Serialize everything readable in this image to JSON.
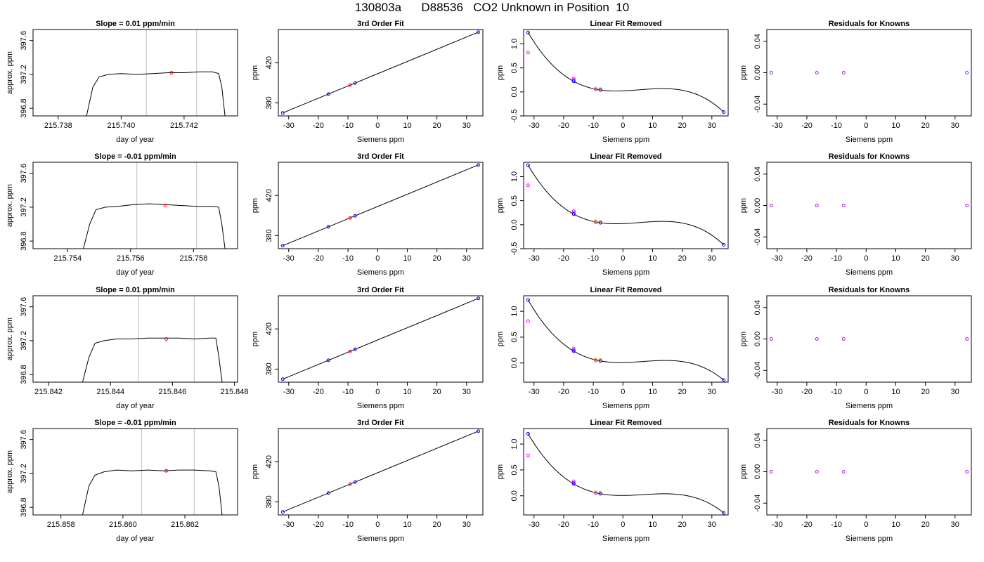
{
  "figure_title": "130803a      D88536   CO2 Unknown in Position  10",
  "colors": {
    "line": "#000000",
    "frame": "#000000",
    "vline": "#bebebe",
    "blue": "#0000ff",
    "red": "#ff0000",
    "orange": "#ffa500",
    "magenta": "#ff00ff",
    "purple": "#a020f0"
  },
  "chart_data": [
    {
      "type": "line",
      "row": 1,
      "col": 1,
      "title": "Slope =  0.01  ppm/min",
      "xlabel": "day of year",
      "ylabel": "approx. ppm",
      "xlim": [
        215.7372,
        215.7437
      ],
      "ylim": [
        396.71,
        397.73
      ],
      "xticks": [
        215.738,
        215.74,
        215.742
      ],
      "xtick_labels": [
        "215.738",
        "215.740",
        "215.742"
      ],
      "yticks": [
        396.8,
        397.2,
        397.6
      ],
      "ytick_labels": [
        "396.8",
        "397.2",
        "397.6"
      ],
      "vlines": [
        215.7408,
        215.7424
      ],
      "x": [
        215.7389,
        215.7391,
        215.7393,
        215.7396,
        215.74,
        215.7405,
        215.741,
        215.7415,
        215.742,
        215.7425,
        215.7429,
        215.7431,
        215.7432,
        215.7433
      ],
      "y": [
        396.71,
        397.05,
        397.17,
        397.2,
        397.21,
        397.2,
        397.21,
        397.22,
        397.22,
        397.23,
        397.23,
        397.21,
        397.05,
        396.71
      ],
      "marker": {
        "x": 215.7416,
        "y": 397.22
      }
    },
    {
      "type": "scatter",
      "row": 1,
      "col": 2,
      "title": "3rd Order Fit",
      "xlabel": "Siemens ppm",
      "ylabel": "ppm",
      "xlim": [
        -33.5,
        35.5
      ],
      "ylim": [
        367,
        453
      ],
      "xticks": [
        -30,
        -20,
        -10,
        0,
        10,
        20,
        30
      ],
      "xtick_labels": [
        "-30",
        "-20",
        "-10",
        "0",
        "10",
        "20",
        "30"
      ],
      "yticks": [
        380,
        420
      ],
      "ytick_labels": [
        "380",
        "420"
      ],
      "fit_line": {
        "x1": -32,
        "y1": 370.0,
        "x2": 34,
        "y2": 450.4
      },
      "points_blue": [
        [
          -32,
          370.0
        ],
        [
          -16.6,
          388.8
        ],
        [
          -7.6,
          399.7
        ],
        [
          34,
          450.4
        ]
      ],
      "points_red": [
        [
          -9.3,
          397.6
        ]
      ]
    },
    {
      "type": "scatter",
      "row": 1,
      "col": 3,
      "title": "Linear Fit Removed",
      "xlabel": "Siemens ppm",
      "ylabel": "ppm",
      "xlim": [
        -33.5,
        35.5
      ],
      "ylim": [
        -0.5,
        1.3
      ],
      "xticks": [
        -30,
        -20,
        -10,
        0,
        10,
        20,
        30
      ],
      "xtick_labels": [
        "-30",
        "-20",
        "-10",
        "0",
        "10",
        "20",
        "30"
      ],
      "yticks": [
        -0.5,
        0.0,
        0.5,
        1.0
      ],
      "ytick_labels": [
        "-0.5",
        "0.0",
        "0.5",
        "1.0"
      ],
      "curve": {
        "a": 0.00058,
        "b": -6e-06,
        "c": -0.0016,
        "d": 0.017,
        "x0": -32,
        "x1": 34
      },
      "points_blue": [
        [
          -32,
          1.24
        ],
        [
          -16.6,
          0.22
        ],
        [
          -7.6,
          0.04
        ],
        [
          34,
          -0.42
        ]
      ],
      "points_magenta": [
        [
          -32,
          0.82
        ],
        [
          -16.6,
          0.28
        ]
      ],
      "points_orange": [
        [
          -9.3,
          0.07
        ],
        [
          -7.6,
          0.06
        ]
      ],
      "points_purple": [
        [
          -9.1,
          0.05
        ],
        [
          -16.6,
          0.25
        ]
      ]
    },
    {
      "type": "scatter",
      "row": 1,
      "col": 4,
      "title": "Residuals for Knowns",
      "xlabel": "Siemens ppm",
      "ylabel": "ppm",
      "xlim": [
        -33.5,
        35.5
      ],
      "ylim": [
        -0.055,
        0.055
      ],
      "xticks": [
        -30,
        -20,
        -10,
        0,
        10,
        20,
        30
      ],
      "xtick_labels": [
        "-30",
        "-20",
        "-10",
        "0",
        "10",
        "20",
        "30"
      ],
      "yticks": [
        -0.04,
        0.0,
        0.04
      ],
      "ytick_labels": [
        "-0.04",
        "0.00",
        "0.04"
      ],
      "points_purple": [
        [
          -32,
          0.0
        ],
        [
          -16.6,
          0.0
        ],
        [
          -7.6,
          0.0
        ],
        [
          34,
          0.0
        ]
      ]
    },
    {
      "type": "line",
      "row": 2,
      "col": 1,
      "title": "Slope =  -0.01  ppm/min",
      "xlabel": "day of year",
      "ylabel": "approx. ppm",
      "xlim": [
        215.7529,
        215.7594
      ],
      "ylim": [
        396.71,
        397.73
      ],
      "xticks": [
        215.754,
        215.756,
        215.758
      ],
      "xtick_labels": [
        "215.754",
        "215.756",
        "215.758"
      ],
      "yticks": [
        396.8,
        397.2,
        397.6
      ],
      "ytick_labels": [
        "396.8",
        "397.2",
        "397.6"
      ],
      "vlines": [
        215.7562,
        215.7581
      ],
      "x": [
        215.7545,
        215.7547,
        215.7549,
        215.7552,
        215.7556,
        215.7561,
        215.7566,
        215.7571,
        215.7576,
        215.7581,
        215.7586,
        215.7588,
        215.7589,
        215.759
      ],
      "y": [
        396.71,
        397.0,
        397.17,
        397.2,
        397.21,
        397.23,
        397.24,
        397.23,
        397.22,
        397.21,
        397.21,
        397.2,
        397.0,
        396.71
      ],
      "marker": {
        "x": 215.7571,
        "y": 397.22
      }
    },
    {
      "type": "scatter",
      "row": 2,
      "col": 2,
      "title": "3rd Order Fit",
      "xlabel": "Siemens ppm",
      "ylabel": "ppm",
      "xlim": [
        -33.5,
        35.5
      ],
      "ylim": [
        367,
        453
      ],
      "xticks": [
        -30,
        -20,
        -10,
        0,
        10,
        20,
        30
      ],
      "xtick_labels": [
        "-30",
        "-20",
        "-10",
        "0",
        "10",
        "20",
        "30"
      ],
      "yticks": [
        380,
        420
      ],
      "ytick_labels": [
        "380",
        "420"
      ],
      "fit_line": {
        "x1": -32,
        "y1": 370.0,
        "x2": 34,
        "y2": 450.4
      },
      "points_blue": [
        [
          -32,
          370.0
        ],
        [
          -16.6,
          388.8
        ],
        [
          -7.6,
          399.7
        ],
        [
          34,
          450.4
        ]
      ],
      "points_red": [
        [
          -9.3,
          397.6
        ]
      ]
    },
    {
      "type": "scatter",
      "row": 2,
      "col": 3,
      "title": "Linear Fit Removed",
      "xlabel": "Siemens ppm",
      "ylabel": "ppm",
      "xlim": [
        -33.5,
        35.5
      ],
      "ylim": [
        -0.5,
        1.3
      ],
      "xticks": [
        -30,
        -20,
        -10,
        0,
        10,
        20,
        30
      ],
      "xtick_labels": [
        "-30",
        "-20",
        "-10",
        "0",
        "10",
        "20",
        "30"
      ],
      "yticks": [
        -0.5,
        0.0,
        0.5,
        1.0
      ],
      "ytick_labels": [
        "-0.5",
        "0.0",
        "0.5",
        "1.0"
      ],
      "curve": {
        "a": 0.00058,
        "b": -6e-06,
        "c": -0.0016,
        "d": 0.017,
        "x0": -32,
        "x1": 34
      },
      "points_blue": [
        [
          -32,
          1.24
        ],
        [
          -16.6,
          0.22
        ],
        [
          -7.6,
          0.04
        ],
        [
          34,
          -0.42
        ]
      ],
      "points_magenta": [
        [
          -32,
          0.82
        ],
        [
          -16.6,
          0.28
        ]
      ],
      "points_orange": [
        [
          -9.3,
          0.07
        ],
        [
          -7.6,
          0.06
        ]
      ],
      "points_purple": [
        [
          -9.1,
          0.05
        ],
        [
          -16.6,
          0.25
        ]
      ]
    },
    {
      "type": "scatter",
      "row": 2,
      "col": 4,
      "title": "Residuals for Knowns",
      "xlabel": "Siemens ppm",
      "ylabel": "ppm",
      "xlim": [
        -33.5,
        35.5
      ],
      "ylim": [
        -0.055,
        0.055
      ],
      "xticks": [
        -30,
        -20,
        -10,
        0,
        10,
        20,
        30
      ],
      "xtick_labels": [
        "-30",
        "-20",
        "-10",
        "0",
        "10",
        "20",
        "30"
      ],
      "yticks": [
        -0.04,
        0.0,
        0.04
      ],
      "ytick_labels": [
        "-0.04",
        "0.00",
        "0.04"
      ],
      "points_purple": [
        [
          -32,
          0.0
        ],
        [
          -16.6,
          0.0
        ],
        [
          -7.6,
          0.0
        ],
        [
          34,
          0.0
        ]
      ]
    },
    {
      "type": "line",
      "row": 3,
      "col": 1,
      "title": "Slope =  0.01  ppm/min",
      "xlabel": "day of year",
      "ylabel": "approx. ppm",
      "xlim": [
        215.8415,
        215.8481
      ],
      "ylim": [
        396.71,
        397.73
      ],
      "xticks": [
        215.842,
        215.844,
        215.846,
        215.848
      ],
      "xtick_labels": [
        "215.842",
        "215.844",
        "215.846",
        "215.848"
      ],
      "yticks": [
        396.8,
        397.2,
        397.6
      ],
      "ytick_labels": [
        "396.8",
        "397.2",
        "397.6"
      ],
      "vlines": [
        215.8449,
        215.8467
      ],
      "x": [
        215.8431,
        215.8433,
        215.8435,
        215.8438,
        215.8442,
        215.8447,
        215.8452,
        215.8457,
        215.8462,
        215.8467,
        215.8472,
        215.8474,
        215.8475,
        215.8476
      ],
      "y": [
        396.71,
        397.0,
        397.17,
        397.2,
        397.22,
        397.22,
        397.23,
        397.23,
        397.23,
        397.22,
        397.23,
        397.23,
        397.0,
        396.71
      ],
      "marker": {
        "x": 215.8458,
        "y": 397.22
      }
    },
    {
      "type": "scatter",
      "row": 3,
      "col": 2,
      "title": "3rd Order Fit",
      "xlabel": "Siemens ppm",
      "ylabel": "ppm",
      "xlim": [
        -33.5,
        35.5
      ],
      "ylim": [
        367,
        453
      ],
      "xticks": [
        -30,
        -20,
        -10,
        0,
        10,
        20,
        30
      ],
      "xtick_labels": [
        "-30",
        "-20",
        "-10",
        "0",
        "10",
        "20",
        "30"
      ],
      "yticks": [
        380,
        420
      ],
      "ytick_labels": [
        "380",
        "420"
      ],
      "fit_line": {
        "x1": -32,
        "y1": 370.0,
        "x2": 34,
        "y2": 450.4
      },
      "points_blue": [
        [
          -32,
          370.0
        ],
        [
          -16.6,
          388.8
        ],
        [
          -7.6,
          399.7
        ],
        [
          34,
          450.4
        ]
      ],
      "points_red": [
        [
          -9.3,
          397.6
        ]
      ]
    },
    {
      "type": "scatter",
      "row": 3,
      "col": 3,
      "title": "Linear Fit Removed",
      "xlabel": "Siemens ppm",
      "ylabel": "ppm",
      "xlim": [
        -33.5,
        35.5
      ],
      "ylim": [
        -0.37,
        1.3
      ],
      "xticks": [
        -30,
        -20,
        -10,
        0,
        10,
        20,
        30
      ],
      "xtick_labels": [
        "-30",
        "-20",
        "-10",
        "0",
        "10",
        "20",
        "30"
      ],
      "yticks": [
        0.0,
        0.5,
        1.0
      ],
      "ytick_labels": [
        "0.0",
        "0.5",
        "1.0"
      ],
      "curve": {
        "a": 0.0114,
        "b": -5e-06,
        "c": -0.00145,
        "d": 0.016,
        "x0": -32,
        "x1": 34
      },
      "points_blue": [
        [
          -32,
          1.22
        ],
        [
          -16.6,
          0.23
        ],
        [
          -7.6,
          0.04
        ],
        [
          34,
          -0.33
        ]
      ],
      "points_magenta": [
        [
          -32,
          0.81
        ],
        [
          -16.6,
          0.28
        ]
      ],
      "points_orange": [
        [
          -9.3,
          0.07
        ],
        [
          -7.6,
          0.06
        ]
      ],
      "points_purple": [
        [
          -9.1,
          0.05
        ],
        [
          -16.6,
          0.25
        ]
      ]
    },
    {
      "type": "scatter",
      "row": 3,
      "col": 4,
      "title": "Residuals for Knowns",
      "xlabel": "Siemens ppm",
      "ylabel": "ppm",
      "xlim": [
        -33.5,
        35.5
      ],
      "ylim": [
        -0.055,
        0.055
      ],
      "xticks": [
        -30,
        -20,
        -10,
        0,
        10,
        20,
        30
      ],
      "xtick_labels": [
        "-30",
        "-20",
        "-10",
        "0",
        "10",
        "20",
        "30"
      ],
      "yticks": [
        -0.04,
        0.0,
        0.04
      ],
      "ytick_labels": [
        "-0.04",
        "0.00",
        "0.04"
      ],
      "points_purple": [
        [
          -32,
          0.0
        ],
        [
          -16.6,
          0.0
        ],
        [
          -7.6,
          0.0
        ],
        [
          34,
          0.0
        ]
      ]
    },
    {
      "type": "line",
      "row": 4,
      "col": 1,
      "title": "Slope =  -0.01  ppm/min",
      "xlabel": "day of year",
      "ylabel": "approx. ppm",
      "xlim": [
        215.8571,
        215.8637
      ],
      "ylim": [
        396.71,
        397.73
      ],
      "xticks": [
        215.858,
        215.86,
        215.862
      ],
      "xtick_labels": [
        "215.858",
        "215.860",
        "215.862"
      ],
      "yticks": [
        396.8,
        397.2,
        397.6
      ],
      "ytick_labels": [
        "396.8",
        "397.2",
        "397.6"
      ],
      "vlines": [
        215.8606,
        215.8623
      ],
      "x": [
        215.8587,
        215.8589,
        215.8591,
        215.8594,
        215.8598,
        215.8603,
        215.8608,
        215.8613,
        215.8618,
        215.8623,
        215.8628,
        215.863,
        215.8631,
        215.8632
      ],
      "y": [
        396.71,
        397.05,
        397.18,
        397.22,
        397.24,
        397.23,
        397.24,
        397.23,
        397.24,
        397.24,
        397.23,
        397.22,
        397.05,
        396.71
      ],
      "marker": {
        "x": 215.8614,
        "y": 397.23
      }
    },
    {
      "type": "scatter",
      "row": 4,
      "col": 2,
      "title": "3rd Order Fit",
      "xlabel": "Siemens ppm",
      "ylabel": "ppm",
      "xlim": [
        -33.5,
        35.5
      ],
      "ylim": [
        367,
        453
      ],
      "xticks": [
        -30,
        -20,
        -10,
        0,
        10,
        20,
        30
      ],
      "xtick_labels": [
        "-30",
        "-20",
        "-10",
        "0",
        "10",
        "20",
        "30"
      ],
      "yticks": [
        380,
        420
      ],
      "ytick_labels": [
        "380",
        "420"
      ],
      "fit_line": {
        "x1": -32,
        "y1": 370.0,
        "x2": 34,
        "y2": 450.4
      },
      "points_blue": [
        [
          -32,
          370.0
        ],
        [
          -16.6,
          388.8
        ],
        [
          -7.6,
          399.7
        ],
        [
          34,
          450.4
        ]
      ],
      "points_red": [
        [
          -9.3,
          397.6
        ]
      ]
    },
    {
      "type": "scatter",
      "row": 4,
      "col": 3,
      "title": "Linear Fit Removed",
      "xlabel": "Siemens ppm",
      "ylabel": "ppm",
      "xlim": [
        -33.5,
        35.5
      ],
      "ylim": [
        -0.37,
        1.3
      ],
      "xticks": [
        -30,
        -20,
        -10,
        0,
        10,
        20,
        30
      ],
      "xtick_labels": [
        "-30",
        "-20",
        "-10",
        "0",
        "10",
        "20",
        "30"
      ],
      "yticks": [
        0.0,
        0.5,
        1.0
      ],
      "ytick_labels": [
        "0.0",
        "0.5",
        "1.0"
      ],
      "curve": {
        "a": 0.0114,
        "b": -5e-06,
        "c": -0.00145,
        "d": 0.016,
        "x0": -32,
        "x1": 34
      },
      "points_blue": [
        [
          -32,
          1.2
        ],
        [
          -16.6,
          0.23
        ],
        [
          -7.6,
          0.04
        ],
        [
          34,
          -0.33
        ]
      ],
      "points_magenta": [
        [
          -32,
          0.78
        ],
        [
          -16.6,
          0.28
        ]
      ],
      "points_orange": [
        [
          -9.3,
          0.07
        ],
        [
          -7.6,
          0.06
        ]
      ],
      "points_purple": [
        [
          -9.1,
          0.05
        ],
        [
          -16.6,
          0.25
        ]
      ]
    },
    {
      "type": "scatter",
      "row": 4,
      "col": 4,
      "title": "Residuals for Knowns",
      "xlabel": "Siemens ppm",
      "ylabel": "ppm",
      "xlim": [
        -33.5,
        35.5
      ],
      "ylim": [
        -0.055,
        0.055
      ],
      "xticks": [
        -30,
        -20,
        -10,
        0,
        10,
        20,
        30
      ],
      "xtick_labels": [
        "-30",
        "-20",
        "-10",
        "0",
        "10",
        "20",
        "30"
      ],
      "yticks": [
        -0.04,
        0.0,
        0.04
      ],
      "ytick_labels": [
        "-0.04",
        "0.00",
        "0.04"
      ],
      "points_purple": [
        [
          -32,
          0.0
        ],
        [
          -16.6,
          0.0
        ],
        [
          -7.6,
          0.0
        ],
        [
          34,
          0.0
        ]
      ]
    }
  ]
}
